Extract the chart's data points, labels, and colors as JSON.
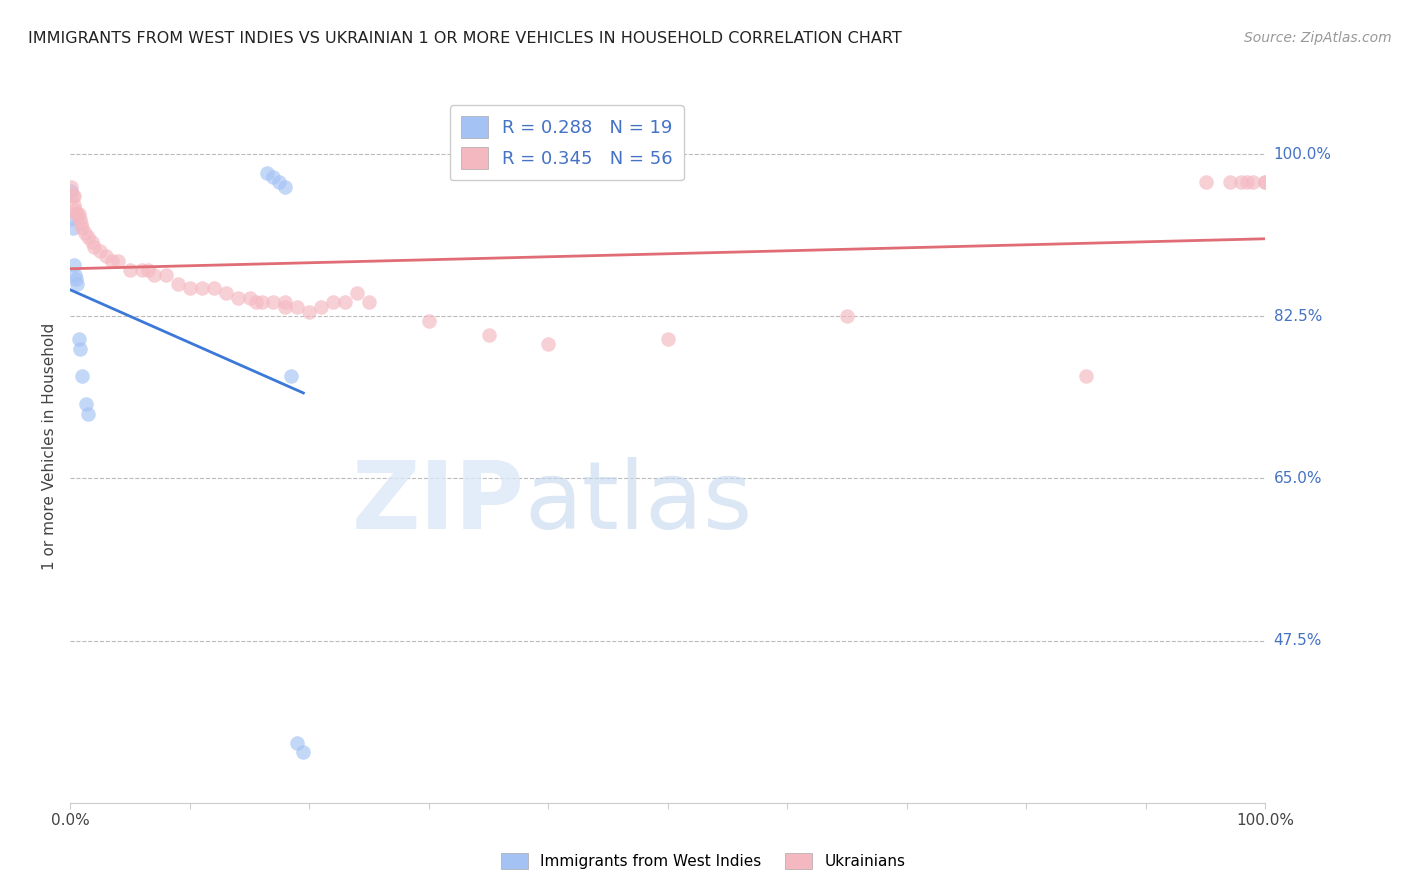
{
  "title": "IMMIGRANTS FROM WEST INDIES VS UKRAINIAN 1 OR MORE VEHICLES IN HOUSEHOLD CORRELATION CHART",
  "source": "Source: ZipAtlas.com",
  "ylabel": "1 or more Vehicles in Household",
  "xlabel": "",
  "xlim": [
    0.0,
    1.0
  ],
  "ylim": [
    0.3,
    1.07
  ],
  "yticks": [
    0.475,
    0.65,
    0.825,
    1.0
  ],
  "ytick_labels": [
    "47.5%",
    "65.0%",
    "82.5%",
    "100.0%"
  ],
  "xticks": [
    0.0,
    0.1,
    0.2,
    0.3,
    0.4,
    0.5,
    0.6,
    0.7,
    0.8,
    0.9,
    1.0
  ],
  "xtick_labels": [
    "0.0%",
    "",
    "",
    "",
    "",
    "",
    "",
    "",
    "",
    "",
    "100.0%"
  ],
  "legend_label_1": "Immigrants from West Indies",
  "legend_label_2": "Ukrainians",
  "R1": 0.288,
  "N1": 19,
  "R2": 0.345,
  "N2": 56,
  "color_blue": "#a4c2f4",
  "color_pink": "#f4b8c1",
  "color_blue_line": "#3c78d8",
  "color_pink_line": "#e06c75",
  "background_color": "#ffffff",
  "grid_color": "#bbbbbb",
  "blue_points_x": [
    0.001,
    0.001,
    0.002,
    0.003,
    0.004,
    0.005,
    0.006,
    0.007,
    0.008,
    0.01,
    0.013,
    0.015,
    0.165,
    0.17,
    0.175,
    0.18,
    0.185,
    0.19,
    0.195
  ],
  "blue_points_y": [
    0.96,
    0.93,
    0.92,
    0.88,
    0.87,
    0.865,
    0.86,
    0.8,
    0.79,
    0.76,
    0.73,
    0.72,
    0.98,
    0.975,
    0.97,
    0.965,
    0.76,
    0.365,
    0.355
  ],
  "pink_points_x": [
    0.001,
    0.002,
    0.003,
    0.003,
    0.004,
    0.005,
    0.006,
    0.007,
    0.008,
    0.009,
    0.01,
    0.012,
    0.015,
    0.018,
    0.02,
    0.025,
    0.03,
    0.035,
    0.04,
    0.05,
    0.06,
    0.065,
    0.07,
    0.08,
    0.09,
    0.1,
    0.11,
    0.12,
    0.13,
    0.14,
    0.15,
    0.155,
    0.16,
    0.17,
    0.18,
    0.18,
    0.19,
    0.2,
    0.21,
    0.22,
    0.23,
    0.24,
    0.25,
    0.3,
    0.35,
    0.4,
    0.5,
    0.65,
    0.85,
    0.95,
    0.97,
    0.98,
    0.985,
    0.99,
    1.0,
    1.0
  ],
  "pink_points_y": [
    0.965,
    0.955,
    0.955,
    0.945,
    0.94,
    0.935,
    0.935,
    0.935,
    0.93,
    0.925,
    0.92,
    0.915,
    0.91,
    0.905,
    0.9,
    0.895,
    0.89,
    0.885,
    0.885,
    0.875,
    0.875,
    0.875,
    0.87,
    0.87,
    0.86,
    0.855,
    0.855,
    0.855,
    0.85,
    0.845,
    0.845,
    0.84,
    0.84,
    0.84,
    0.84,
    0.835,
    0.835,
    0.83,
    0.835,
    0.84,
    0.84,
    0.85,
    0.84,
    0.82,
    0.805,
    0.795,
    0.8,
    0.825,
    0.76,
    0.97,
    0.97,
    0.97,
    0.97,
    0.97,
    0.97,
    0.97
  ]
}
